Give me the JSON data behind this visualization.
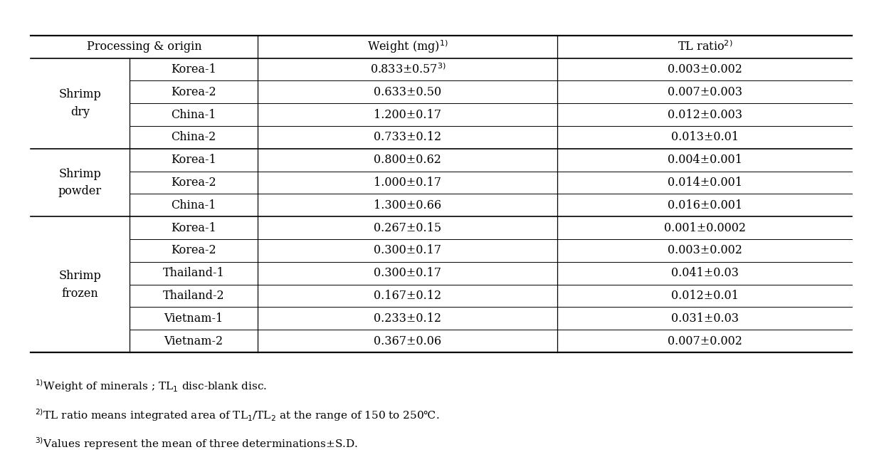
{
  "groups": [
    {
      "group_label_lines": [
        "Shrimp",
        "dry"
      ],
      "rows": [
        {
          "origin": "Korea-1",
          "weight": "0.833±0.57",
          "weight_sup": "3)",
          "tl_ratio": "0.003±0.002"
        },
        {
          "origin": "Korea-2",
          "weight": "0.633±0.50",
          "weight_sup": "",
          "tl_ratio": "0.007±0.003"
        },
        {
          "origin": "China-1",
          "weight": "1.200±0.17",
          "weight_sup": "",
          "tl_ratio": "0.012±0.003"
        },
        {
          "origin": "China-2",
          "weight": "0.733±0.12",
          "weight_sup": "",
          "tl_ratio": "0.013±0.01"
        }
      ]
    },
    {
      "group_label_lines": [
        "Shrimp",
        "powder"
      ],
      "rows": [
        {
          "origin": "Korea-1",
          "weight": "0.800±0.62",
          "weight_sup": "",
          "tl_ratio": "0.004±0.001"
        },
        {
          "origin": "Korea-2",
          "weight": "1.000±0.17",
          "weight_sup": "",
          "tl_ratio": "0.014±0.001"
        },
        {
          "origin": "China-1",
          "weight": "1.300±0.66",
          "weight_sup": "",
          "tl_ratio": "0.016±0.001"
        }
      ]
    },
    {
      "group_label_lines": [
        "Shrimp",
        "frozen"
      ],
      "rows": [
        {
          "origin": "Korea-1",
          "weight": "0.267±0.15",
          "weight_sup": "",
          "tl_ratio": "0.001±0.0002"
        },
        {
          "origin": "Korea-2",
          "weight": "0.300±0.17",
          "weight_sup": "",
          "tl_ratio": "0.003±0.002"
        },
        {
          "origin": "Thailand-1",
          "weight": "0.300±0.17",
          "weight_sup": "",
          "tl_ratio": "0.041±0.03"
        },
        {
          "origin": "Thailand-2",
          "weight": "0.167±0.12",
          "weight_sup": "",
          "tl_ratio": "0.012±0.01"
        },
        {
          "origin": "Vietnam-1",
          "weight": "0.233±0.12",
          "weight_sup": "",
          "tl_ratio": "0.031±0.03"
        },
        {
          "origin": "Vietnam-2",
          "weight": "0.367±0.06",
          "weight_sup": "",
          "tl_ratio": "0.007±0.002"
        }
      ]
    }
  ],
  "bg_color": "#ffffff",
  "font_size": 11.5,
  "sup_font_size": 8.5,
  "footnote_font_size": 11.0
}
